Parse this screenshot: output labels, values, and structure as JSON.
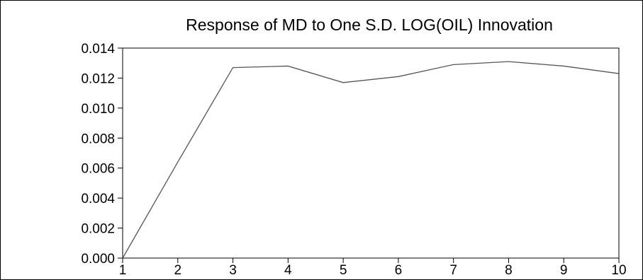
{
  "chart_data": {
    "type": "line",
    "title": "Response of MD to One S.D. LOG(OIL) Innovation",
    "xlabel": "",
    "ylabel": "",
    "x": [
      1,
      2,
      3,
      4,
      5,
      6,
      7,
      8,
      9,
      10
    ],
    "series": [
      {
        "values": [
          0.0,
          0.0064,
          0.0127,
          0.0128,
          0.0117,
          0.0121,
          0.0129,
          0.0131,
          0.0128,
          0.0123
        ]
      }
    ],
    "xlim": [
      1,
      10
    ],
    "ylim": [
      0.0,
      0.014
    ],
    "x_ticks": [
      "1",
      "2",
      "3",
      "4",
      "5",
      "6",
      "7",
      "8",
      "9",
      "10"
    ],
    "y_ticks": [
      "0.000",
      "0.002",
      "0.004",
      "0.006",
      "0.008",
      "0.010",
      "0.012",
      "0.014"
    ],
    "grid": false,
    "legend": "none",
    "line_color": "#555555"
  }
}
